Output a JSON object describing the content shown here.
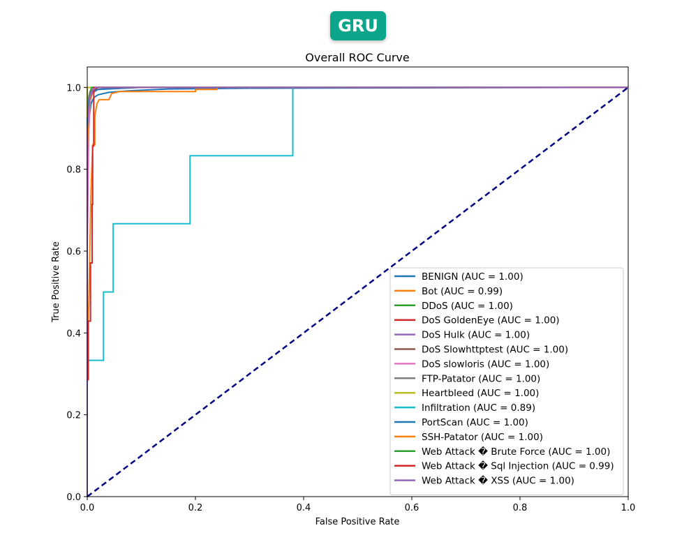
{
  "badge": {
    "label": "GRU",
    "color": "#0aa58a"
  },
  "chart_data": {
    "type": "line",
    "title": "Overall ROC Curve",
    "xlabel": "False Positive Rate",
    "ylabel": "True Positive Rate",
    "xlim": [
      0.0,
      1.0
    ],
    "ylim": [
      0.0,
      1.05
    ],
    "xticks": [
      "0.0",
      "0.2",
      "0.4",
      "0.6",
      "0.8",
      "1.0"
    ],
    "yticks": [
      "0.0",
      "0.2",
      "0.4",
      "0.6",
      "0.8",
      "1.0"
    ],
    "grid": false,
    "legend": "lower-right",
    "diagonal": {
      "color": "#000080",
      "style": "dashed",
      "points": [
        [
          0,
          0
        ],
        [
          1,
          1
        ]
      ]
    },
    "series": [
      {
        "name": "BENIGN (AUC = 1.00)",
        "color": "#1f77b4",
        "points": [
          [
            0,
            0
          ],
          [
            0,
            0.7
          ],
          [
            0.002,
            0.88
          ],
          [
            0.004,
            0.93
          ],
          [
            0.007,
            0.96
          ],
          [
            0.012,
            0.975
          ],
          [
            0.02,
            0.982
          ],
          [
            0.04,
            0.988
          ],
          [
            0.08,
            0.992
          ],
          [
            0.15,
            0.996
          ],
          [
            0.3,
            0.998
          ],
          [
            1,
            1
          ]
        ]
      },
      {
        "name": "Bot (AUC = 0.99)",
        "color": "#ff7f0e",
        "points": [
          [
            0,
            0
          ],
          [
            0,
            0.3
          ],
          [
            0.004,
            0.55
          ],
          [
            0.007,
            0.75
          ],
          [
            0.01,
            0.86
          ],
          [
            0.014,
            0.86
          ],
          [
            0.014,
            0.93
          ],
          [
            0.018,
            0.96
          ],
          [
            0.022,
            0.97
          ],
          [
            0.04,
            0.97
          ],
          [
            0.045,
            0.985
          ],
          [
            0.06,
            0.99
          ],
          [
            0.2,
            0.99
          ],
          [
            0.2,
            0.995
          ],
          [
            0.24,
            0.995
          ],
          [
            0.24,
            1
          ],
          [
            1,
            1
          ]
        ]
      },
      {
        "name": "DDoS (AUC = 1.00)",
        "color": "#2ca02c",
        "points": [
          [
            0,
            0
          ],
          [
            0,
            0.9
          ],
          [
            0.002,
            0.97
          ],
          [
            0.005,
            0.99
          ],
          [
            0.01,
            1
          ],
          [
            1,
            1
          ]
        ]
      },
      {
        "name": "DoS GoldenEye (AUC = 1.00)",
        "color": "#d62728",
        "points": [
          [
            0,
            0
          ],
          [
            0,
            0.8
          ],
          [
            0.003,
            0.93
          ],
          [
            0.006,
            0.97
          ],
          [
            0.01,
            0.99
          ],
          [
            0.02,
            1
          ],
          [
            1,
            1
          ]
        ]
      },
      {
        "name": "DoS Hulk (AUC = 1.00)",
        "color": "#9467bd",
        "points": [
          [
            0,
            0
          ],
          [
            0,
            0.85
          ],
          [
            0.003,
            0.95
          ],
          [
            0.008,
            0.985
          ],
          [
            0.02,
            0.995
          ],
          [
            0.05,
            1
          ],
          [
            1,
            1
          ]
        ]
      },
      {
        "name": "DoS Slowhttptest (AUC = 1.00)",
        "color": "#8c564b",
        "points": [
          [
            0,
            0
          ],
          [
            0,
            0.9
          ],
          [
            0.003,
            0.97
          ],
          [
            0.008,
            0.995
          ],
          [
            0.015,
            1
          ],
          [
            1,
            1
          ]
        ]
      },
      {
        "name": "DoS slowloris (AUC = 1.00)",
        "color": "#e377c2",
        "points": [
          [
            0,
            0
          ],
          [
            0,
            0.6
          ],
          [
            0.003,
            0.9
          ],
          [
            0.006,
            0.98
          ],
          [
            0.01,
            1
          ],
          [
            1,
            1
          ]
        ]
      },
      {
        "name": "FTP-Patator (AUC = 1.00)",
        "color": "#7f7f7f",
        "points": [
          [
            0,
            0
          ],
          [
            0,
            0.9
          ],
          [
            0.003,
            0.98
          ],
          [
            0.008,
            1
          ],
          [
            1,
            1
          ]
        ]
      },
      {
        "name": "Heartbleed (AUC = 1.00)",
        "color": "#bcbd22",
        "points": [
          [
            0,
            0
          ],
          [
            0,
            1
          ],
          [
            1,
            1
          ]
        ]
      },
      {
        "name": "Infiltration (AUC = 0.89)",
        "color": "#17becf",
        "points": [
          [
            0,
            0
          ],
          [
            0,
            0.333
          ],
          [
            0.03,
            0.333
          ],
          [
            0.03,
            0.5
          ],
          [
            0.048,
            0.5
          ],
          [
            0.048,
            0.667
          ],
          [
            0.19,
            0.667
          ],
          [
            0.19,
            0.833
          ],
          [
            0.38,
            0.833
          ],
          [
            0.38,
            1
          ],
          [
            1,
            1
          ]
        ]
      },
      {
        "name": "PortScan (AUC = 1.00)",
        "color": "#1f77b4",
        "points": [
          [
            0,
            0
          ],
          [
            0,
            0.92
          ],
          [
            0.003,
            0.97
          ],
          [
            0.008,
            0.99
          ],
          [
            0.02,
            0.995
          ],
          [
            0.1,
            1
          ],
          [
            1,
            1
          ]
        ]
      },
      {
        "name": "SSH-Patator (AUC = 1.00)",
        "color": "#ff7f0e",
        "points": [
          [
            0,
            0
          ],
          [
            0,
            0.85
          ],
          [
            0.003,
            0.95
          ],
          [
            0.008,
            0.99
          ],
          [
            0.015,
            1
          ],
          [
            1,
            1
          ]
        ]
      },
      {
        "name": "Web Attack � Brute Force (AUC = 1.00)",
        "color": "#2ca02c",
        "points": [
          [
            0,
            0
          ],
          [
            0,
            0.9
          ],
          [
            0.004,
            0.97
          ],
          [
            0.008,
            1
          ],
          [
            1,
            1
          ]
        ]
      },
      {
        "name": "Web Attack � Sql Injection (AUC = 0.99)",
        "color": "#d62728",
        "points": [
          [
            0,
            0
          ],
          [
            0,
            0.286
          ],
          [
            0.002,
            0.286
          ],
          [
            0.002,
            0.429
          ],
          [
            0.006,
            0.429
          ],
          [
            0.006,
            0.571
          ],
          [
            0.009,
            0.571
          ],
          [
            0.009,
            0.714
          ],
          [
            0.01,
            0.714
          ],
          [
            0.01,
            0.857
          ],
          [
            0.012,
            0.857
          ],
          [
            0.012,
            1
          ],
          [
            1,
            1
          ]
        ]
      },
      {
        "name": "Web Attack � XSS (AUC = 1.00)",
        "color": "#9467bd",
        "points": [
          [
            0,
            0
          ],
          [
            0,
            0.9
          ],
          [
            0.004,
            0.97
          ],
          [
            0.008,
            0.99
          ],
          [
            0.015,
            1
          ],
          [
            1,
            1
          ]
        ]
      }
    ]
  }
}
